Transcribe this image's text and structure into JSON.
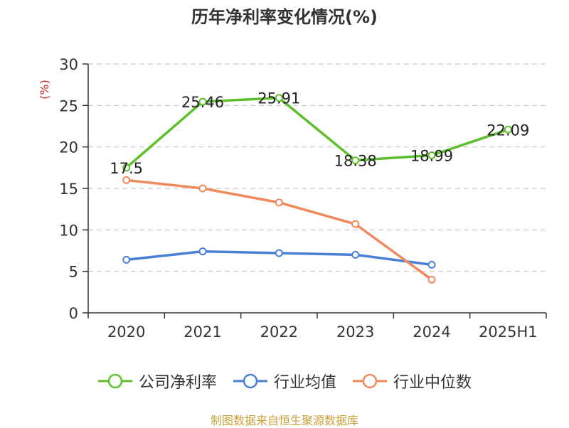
{
  "title": "历年净利率变化情况(%)",
  "source": "制图数据来自恒生聚源数据库",
  "chart_data": {
    "type": "line",
    "title": "历年净利率变化情况(%)",
    "ylabel": "(%)",
    "xlabel": "",
    "categories": [
      "2020",
      "2021",
      "2022",
      "2023",
      "2024",
      "2025H1"
    ],
    "ylim": [
      0,
      30
    ],
    "yticks": [
      0,
      5,
      10,
      15,
      20,
      25,
      30
    ],
    "grid": true,
    "legend_position": "bottom",
    "series": [
      {
        "name": "公司净利率",
        "color": "#5dbf2c",
        "values": [
          17.5,
          25.46,
          25.91,
          18.38,
          18.99,
          22.09
        ],
        "labels": [
          "17.5",
          "25.46",
          "25.91",
          "18.38",
          "18.99",
          "22.09"
        ]
      },
      {
        "name": "行业均值",
        "color": "#4a7fd8",
        "values": [
          6.4,
          7.4,
          7.2,
          7.0,
          5.8,
          null
        ]
      },
      {
        "name": "行业中位数",
        "color": "#f08a5c",
        "values": [
          16.0,
          15.0,
          13.3,
          10.7,
          4.0,
          null
        ]
      }
    ]
  }
}
